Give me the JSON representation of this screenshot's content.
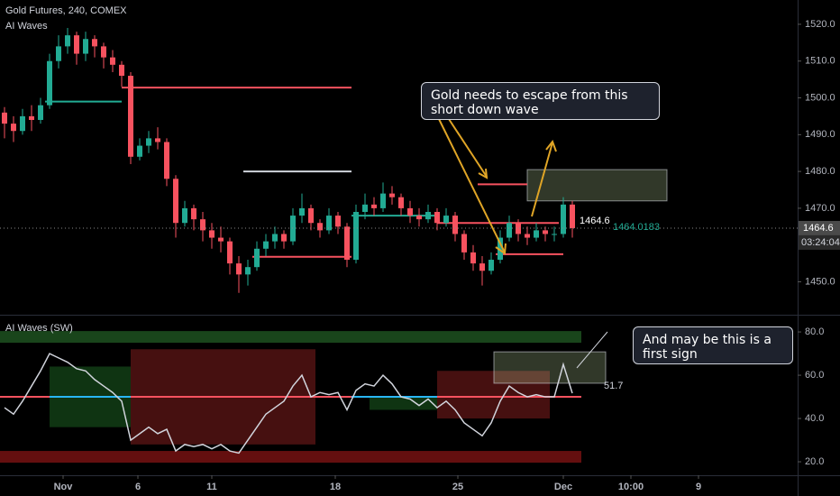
{
  "chart_data": [
    {
      "type": "candlestick",
      "title": "Gold Futures, 240, COMEX",
      "subtitle": "AI Waves",
      "up_color": "#22ab94",
      "down_color": "#f7525f",
      "candles": [
        [
          1496,
          1497.5,
          1489,
          1493
        ],
        [
          1493,
          1495,
          1488,
          1491
        ],
        [
          1491,
          1497,
          1490,
          1495
        ],
        [
          1495,
          1498,
          1491,
          1494
        ],
        [
          1494,
          1500,
          1493,
          1498
        ],
        [
          1498,
          1512,
          1497,
          1510
        ],
        [
          1510,
          1517,
          1508,
          1514
        ],
        [
          1514,
          1519,
          1512,
          1517
        ],
        [
          1517,
          1518,
          1509,
          1512
        ],
        [
          1512,
          1518,
          1510,
          1516
        ],
        [
          1516,
          1517,
          1511,
          1514
        ],
        [
          1514,
          1515,
          1508,
          1511
        ],
        [
          1511,
          1513,
          1507,
          1509
        ],
        [
          1509,
          1510,
          1503,
          1506
        ],
        [
          1506,
          1507,
          1482,
          1484
        ],
        [
          1484,
          1489,
          1483,
          1487
        ],
        [
          1487,
          1491,
          1485,
          1489
        ],
        [
          1489,
          1492,
          1486,
          1488
        ],
        [
          1488,
          1489,
          1476,
          1478
        ],
        [
          1478,
          1479,
          1462,
          1466
        ],
        [
          1466,
          1472,
          1465,
          1470
        ],
        [
          1470,
          1471,
          1464,
          1467
        ],
        [
          1467,
          1469,
          1461,
          1464
        ],
        [
          1464,
          1466,
          1459,
          1462
        ],
        [
          1462,
          1465,
          1458,
          1461
        ],
        [
          1461,
          1462,
          1452,
          1455
        ],
        [
          1455,
          1457,
          1447,
          1452
        ],
        [
          1452,
          1456,
          1449,
          1454
        ],
        [
          1454,
          1461,
          1453,
          1459
        ],
        [
          1459,
          1463,
          1457,
          1461
        ],
        [
          1461,
          1465,
          1459,
          1463
        ],
        [
          1463,
          1464,
          1459,
          1461
        ],
        [
          1461,
          1470,
          1460,
          1468
        ],
        [
          1468,
          1474,
          1466,
          1470
        ],
        [
          1470,
          1471,
          1464,
          1466
        ],
        [
          1466,
          1467,
          1462,
          1464
        ],
        [
          1464,
          1470,
          1463,
          1468
        ],
        [
          1468,
          1469,
          1463,
          1465
        ],
        [
          1465,
          1466,
          1454,
          1456
        ],
        [
          1456,
          1471,
          1455,
          1469
        ],
        [
          1469,
          1474,
          1467,
          1471
        ],
        [
          1471,
          1473,
          1468,
          1470
        ],
        [
          1470,
          1477,
          1469,
          1474
        ],
        [
          1474,
          1476,
          1471,
          1473
        ],
        [
          1473,
          1474,
          1468,
          1470
        ],
        [
          1470,
          1472,
          1466,
          1468
        ],
        [
          1468,
          1470,
          1465,
          1467
        ],
        [
          1467,
          1471,
          1466,
          1469
        ],
        [
          1469,
          1470,
          1464,
          1466
        ],
        [
          1466,
          1470,
          1465,
          1468
        ],
        [
          1468,
          1469,
          1461,
          1463
        ],
        [
          1463,
          1464,
          1456,
          1458
        ],
        [
          1458,
          1460,
          1453,
          1455
        ],
        [
          1455,
          1457,
          1449,
          1453
        ],
        [
          1453,
          1458,
          1452,
          1456
        ],
        [
          1456,
          1464,
          1455,
          1462
        ],
        [
          1462,
          1468,
          1461,
          1466
        ],
        [
          1466,
          1467,
          1461,
          1463
        ],
        [
          1463,
          1465,
          1460,
          1462
        ],
        [
          1462,
          1466,
          1461,
          1464
        ],
        [
          1464,
          1465,
          1461,
          1463
        ],
        [
          1463,
          1465,
          1461,
          1463
        ],
        [
          1463,
          1473,
          1462,
          1471
        ],
        [
          1471,
          1472,
          1462,
          1464.6
        ]
      ],
      "xlim": [
        0,
        88
      ],
      "xticks": [
        {
          "value": 7,
          "label": "Nov"
        },
        {
          "value": 15.3,
          "label": "6"
        },
        {
          "value": 23.5,
          "label": "11"
        },
        {
          "value": 37.2,
          "label": "18"
        },
        {
          "value": 50.8,
          "label": "25"
        },
        {
          "value": 62.5,
          "label": "Dec"
        },
        {
          "value": 70,
          "label": "10:00"
        },
        {
          "value": 77.5,
          "label": "9"
        }
      ],
      "ylim": [
        1441.3,
        1526.6
      ],
      "yticks": [
        {
          "value": 1450,
          "label": "1450.0"
        },
        {
          "value": 1470,
          "label": "1470.0"
        },
        {
          "value": 1480,
          "label": "1480.0"
        },
        {
          "value": 1490,
          "label": "1490.0"
        },
        {
          "value": 1500,
          "label": "1500.0"
        },
        {
          "value": 1510,
          "label": "1510.0"
        },
        {
          "value": 1520,
          "label": "1520.0"
        }
      ],
      "wave_levels": [
        {
          "value": 1502.8,
          "x": [
            13.5,
            39
          ],
          "color": "#f7525f"
        },
        {
          "value": 1499,
          "x": [
            5,
            13.5
          ],
          "color": "#22ab94"
        },
        {
          "value": 1480,
          "x": [
            27,
            39
          ],
          "color": "#d1d4dc"
        },
        {
          "value": 1456.8,
          "x": [
            28,
            39
          ],
          "color": "#f7525f"
        },
        {
          "value": 1468,
          "x": [
            39,
            48.5
          ],
          "color": "#22ab94"
        },
        {
          "value": 1466,
          "x": [
            48.5,
            62
          ],
          "color": "#f7525f"
        },
        {
          "value": 1457.5,
          "x": [
            55,
            62.5
          ],
          "color": "#f7525f"
        },
        {
          "value": 1476.5,
          "x": [
            53,
            58.5
          ],
          "color": "#f7525f"
        }
      ],
      "zones": [
        {
          "ylim": [
            1472,
            1480.5
          ],
          "xlim": [
            58.5,
            74
          ],
          "color": "#c5e1a5"
        }
      ],
      "wave_value": 1464.0183,
      "countdown": "03:24:04",
      "annotation": "Gold needs to escape from this short down wave"
    },
    {
      "type": "line",
      "title": "AI Waves (SW)",
      "color": "#d1d4dc",
      "values": [
        45,
        42,
        48,
        55,
        62,
        70,
        68,
        66,
        63,
        62,
        58,
        55,
        52,
        48,
        30,
        33,
        36,
        33,
        35,
        25,
        28,
        27,
        28,
        26,
        28,
        25,
        24,
        30,
        36,
        42,
        45,
        48,
        55,
        60,
        50,
        52,
        51,
        52,
        44,
        53,
        56,
        55,
        60,
        56,
        50,
        49,
        46,
        49,
        45,
        48,
        44,
        38,
        35,
        32,
        38,
        48,
        55,
        52,
        50,
        51,
        50,
        50,
        65,
        51.7
      ],
      "xlim": [
        0,
        88
      ],
      "ylim": [
        14.6,
        86.7
      ],
      "yticks": [
        {
          "value": 20,
          "label": "20.0"
        },
        {
          "value": 40,
          "label": "40.0"
        },
        {
          "value": 60,
          "label": "60.0"
        },
        {
          "value": 80,
          "label": "80.0"
        }
      ],
      "wave_levels": [
        {
          "value": 50,
          "x": [
            0,
            64.5
          ],
          "color": "#f7525f"
        },
        {
          "value": 50,
          "x": [
            5.5,
            14.5
          ],
          "color": "#29b6f6"
        },
        {
          "value": 50,
          "x": [
            39,
            48.5
          ],
          "color": "#29b6f6"
        }
      ],
      "zones": [
        {
          "ylim": [
            75,
            80.4
          ],
          "xlim": [
            0,
            64.5
          ],
          "color": "#2e7d32"
        },
        {
          "ylim": [
            19.6,
            25
          ],
          "xlim": [
            0,
            64.5
          ],
          "color": "#b71c1c"
        },
        {
          "ylim": [
            28,
            72
          ],
          "xlim": [
            14.5,
            35
          ],
          "color": "#7f1d1d"
        },
        {
          "ylim": [
            36,
            64
          ],
          "xlim": [
            5.5,
            14.5
          ],
          "color": "#1b5e20"
        },
        {
          "ylim": [
            40,
            62
          ],
          "xlim": [
            48.5,
            61
          ],
          "color": "#7f1d1d"
        },
        {
          "ylim": [
            44,
            50
          ],
          "xlim": [
            41,
            48.5
          ],
          "color": "#1b5e20"
        },
        {
          "ylim": [
            56.3,
            70.8
          ],
          "xlim": [
            54.8,
            67.2
          ],
          "color": "#c5e1a5"
        }
      ],
      "annotation": "And may be this is a first sign"
    }
  ]
}
